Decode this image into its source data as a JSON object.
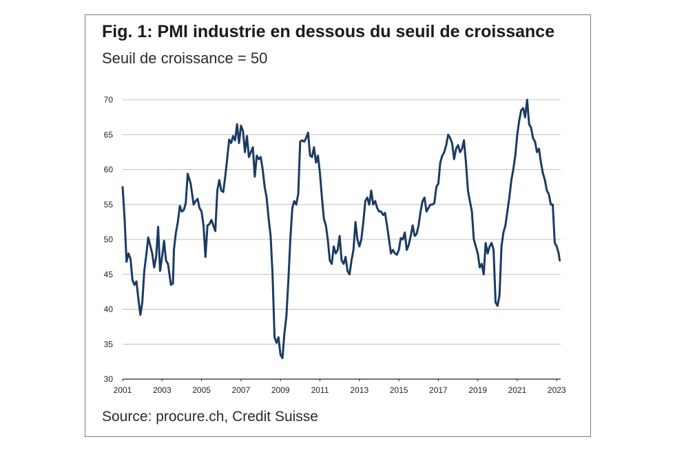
{
  "figure": {
    "title": "Fig. 1: PMI industrie en dessous du seuil de croissance",
    "subtitle": "Seuil de croissance = 50",
    "source": "Source: procure.ch, Credit Suisse"
  },
  "colors": {
    "line": "#1b3a63",
    "grid": "#bfbfbf",
    "axis": "#222222"
  },
  "chart_data": {
    "type": "line",
    "title": "Fig. 1: PMI industrie en dessous du seuil de croissance",
    "subtitle": "Seuil de croissance = 50",
    "xlabel": "",
    "ylabel": "",
    "xlim": [
      2001,
      2023.2
    ],
    "ylim": [
      30,
      70
    ],
    "grid": true,
    "legend": "none",
    "x_ticks": [
      2001,
      2003,
      2005,
      2007,
      2009,
      2011,
      2013,
      2015,
      2017,
      2019,
      2021,
      2023
    ],
    "y_ticks": [
      30,
      35,
      40,
      45,
      50,
      55,
      60,
      65,
      70
    ],
    "series": [
      {
        "x": [
          2001.0,
          2001.1,
          2001.2,
          2001.3,
          2001.4,
          2001.5,
          2001.6,
          2001.7,
          2001.8,
          2001.9,
          2002.0,
          2002.1,
          2002.2,
          2002.3,
          2002.5,
          2002.6,
          2002.7,
          2002.8,
          2002.9,
          2003.0,
          2003.1,
          2003.2,
          2003.3,
          2003.45,
          2003.55,
          2003.6,
          2003.7,
          2003.8,
          2003.9,
          2004.0,
          2004.1,
          2004.2,
          2004.3,
          2004.45,
          2004.6,
          2004.7,
          2004.8,
          2004.9,
          2005.0,
          2005.1,
          2005.2,
          2005.3,
          2005.4,
          2005.5,
          2005.6,
          2005.7,
          2005.8,
          2005.9,
          2006.0,
          2006.1,
          2006.2,
          2006.3,
          2006.4,
          2006.5,
          2006.6,
          2006.7,
          2006.8,
          2006.9,
          2007.0,
          2007.1,
          2007.2,
          2007.3,
          2007.4,
          2007.5,
          2007.6,
          2007.7,
          2007.8,
          2007.9,
          2008.0,
          2008.1,
          2008.2,
          2008.3,
          2008.4,
          2008.5,
          2008.6,
          2008.7,
          2008.8,
          2008.9,
          2009.0,
          2009.1,
          2009.2,
          2009.3,
          2009.4,
          2009.5,
          2009.6,
          2009.7,
          2009.8,
          2009.9,
          2010.0,
          2010.1,
          2010.2,
          2010.3,
          2010.4,
          2010.5,
          2010.6,
          2010.7,
          2010.8,
          2010.9,
          2011.0,
          2011.1,
          2011.2,
          2011.3,
          2011.4,
          2011.5,
          2011.6,
          2011.7,
          2011.8,
          2011.9,
          2012.0,
          2012.1,
          2012.2,
          2012.3,
          2012.4,
          2012.5,
          2012.6,
          2012.7,
          2012.8,
          2012.9,
          2013.0,
          2013.1,
          2013.2,
          2013.3,
          2013.4,
          2013.5,
          2013.6,
          2013.7,
          2013.8,
          2013.9,
          2014.0,
          2014.1,
          2014.2,
          2014.3,
          2014.4,
          2014.5,
          2014.6,
          2014.7,
          2014.8,
          2014.9,
          2015.0,
          2015.1,
          2015.2,
          2015.3,
          2015.4,
          2015.5,
          2015.6,
          2015.7,
          2015.8,
          2015.9,
          2016.0,
          2016.1,
          2016.2,
          2016.3,
          2016.4,
          2016.5,
          2016.6,
          2016.7,
          2016.8,
          2016.9,
          2017.0,
          2017.1,
          2017.2,
          2017.3,
          2017.4,
          2017.5,
          2017.6,
          2017.7,
          2017.8,
          2017.9,
          2018.0,
          2018.1,
          2018.2,
          2018.3,
          2018.4,
          2018.5,
          2018.6,
          2018.7,
          2018.8,
          2018.9,
          2019.0,
          2019.1,
          2019.2,
          2019.3,
          2019.4,
          2019.5,
          2019.6,
          2019.7,
          2019.8,
          2019.9,
          2020.0,
          2020.1,
          2020.2,
          2020.3,
          2020.4,
          2020.5,
          2020.6,
          2020.7,
          2020.8,
          2020.9,
          2021.0,
          2021.1,
          2021.2,
          2021.3,
          2021.4,
          2021.5,
          2021.6,
          2021.7,
          2021.8,
          2021.9,
          2022.0,
          2022.1,
          2022.2,
          2022.3,
          2022.4,
          2022.5,
          2022.6,
          2022.7,
          2022.8,
          2022.9,
          2023.0,
          2023.1,
          2023.15
        ],
        "y": [
          57.5,
          53.0,
          46.8,
          48.0,
          47.2,
          44.2,
          43.5,
          44.0,
          41.5,
          39.2,
          41.0,
          45.5,
          47.8,
          50.3,
          48.0,
          46.0,
          47.5,
          51.8,
          45.5,
          47.5,
          49.8,
          47.0,
          46.5,
          43.5,
          43.7,
          48.5,
          51.0,
          52.5,
          54.8,
          54.0,
          54.2,
          55.2,
          59.4,
          58.0,
          55.0,
          55.5,
          55.8,
          54.5,
          54.0,
          52.0,
          47.5,
          52.0,
          52.2,
          52.8,
          52.0,
          51.2,
          57.0,
          58.5,
          57.0,
          56.8,
          59.0,
          61.5,
          64.3,
          63.8,
          64.8,
          64.2,
          66.5,
          63.8,
          66.3,
          65.5,
          62.5,
          64.8,
          61.8,
          62.5,
          63.2,
          59.0,
          62.0,
          61.5,
          61.8,
          60.0,
          57.5,
          56.0,
          53.0,
          50.5,
          45.0,
          36.0,
          35.2,
          36.0,
          33.5,
          33.0,
          36.5,
          39.0,
          44.0,
          50.0,
          54.5,
          55.5,
          55.0,
          56.5,
          64.0,
          64.2,
          64.0,
          64.5,
          65.3,
          62.0,
          61.8,
          63.2,
          61.0,
          62.0,
          59.5,
          56.0,
          53.0,
          52.0,
          50.0,
          47.0,
          46.5,
          49.0,
          48.0,
          48.5,
          50.5,
          47.0,
          46.5,
          47.5,
          45.5,
          45.0,
          47.0,
          48.5,
          52.5,
          50.0,
          49.0,
          50.0,
          52.5,
          55.5,
          56.0,
          55.0,
          57.0,
          55.0,
          55.5,
          54.5,
          54.0,
          54.0,
          53.5,
          53.8,
          52.0,
          50.0,
          48.0,
          48.5,
          48.0,
          47.8,
          48.5,
          50.2,
          50.0,
          51.0,
          48.5,
          49.2,
          50.5,
          52.0,
          50.5,
          50.8,
          52.0,
          54.0,
          55.5,
          56.0,
          54.0,
          54.5,
          55.0,
          55.0,
          55.2,
          57.5,
          58.0,
          61.0,
          62.0,
          62.5,
          63.5,
          65.0,
          64.5,
          63.8,
          61.5,
          63.0,
          63.5,
          62.5,
          63.0,
          64.2,
          61.0,
          57.0,
          55.5,
          54.0,
          50.0,
          49.0,
          48.0,
          46.0,
          46.5,
          45.0,
          49.5,
          48.0,
          49.0,
          49.5,
          48.5,
          41.0,
          40.5,
          42.0,
          49.0,
          51.0,
          52.0,
          54.0,
          56.0,
          58.5,
          60.0,
          62.0,
          65.0,
          67.0,
          68.5,
          68.8,
          67.5,
          70.0,
          66.5,
          66.0,
          64.5,
          64.0,
          62.5,
          63.0,
          61.0,
          59.5,
          58.5,
          57.0,
          56.5,
          55.0,
          55.0,
          49.5,
          49.0,
          48.0,
          47.0
        ]
      }
    ]
  }
}
